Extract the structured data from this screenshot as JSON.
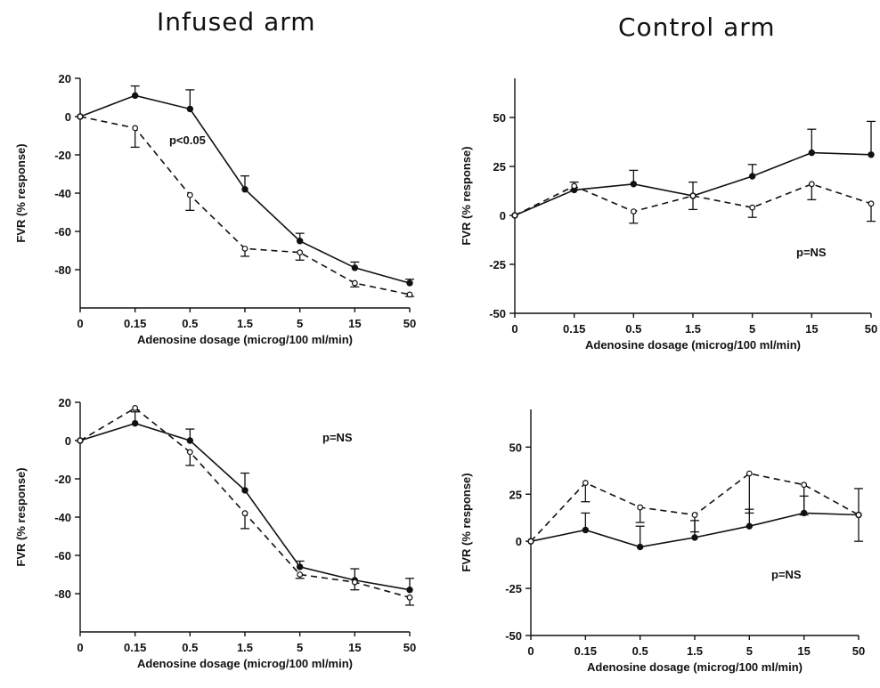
{
  "titles": {
    "left": "Infused arm",
    "right": "Control arm"
  },
  "chart_data": [
    {
      "type": "line",
      "panel": "top-left",
      "categories": [
        "0",
        "0.15",
        "0.5",
        "1.5",
        "5",
        "15",
        "50"
      ],
      "xlabel": "Adenosine dosage (microg/100 ml/min)",
      "ylabel": "FVR (% response)",
      "ylim": [
        -100,
        20
      ],
      "yticks": [
        20,
        0,
        -20,
        -40,
        -60,
        -80
      ],
      "annotation": "p<0.05",
      "series": [
        {
          "style": "solid",
          "marker": "filled",
          "values": [
            0,
            11,
            4,
            -38,
            -65,
            -79,
            -87
          ],
          "errors": [
            0,
            5,
            10,
            7,
            4,
            3,
            2
          ]
        },
        {
          "style": "dashed",
          "marker": "open",
          "values": [
            0,
            -6,
            -41,
            -69,
            -71,
            -87,
            -93
          ],
          "errors": [
            0,
            10,
            8,
            4,
            4,
            2,
            1
          ]
        }
      ]
    },
    {
      "type": "line",
      "panel": "top-right",
      "categories": [
        "0",
        "0.15",
        "0.5",
        "1.5",
        "5",
        "15",
        "50"
      ],
      "xlabel": "Adenosine dosage (microg/100 ml/min)",
      "ylabel": "FVR (% response)",
      "ylim": [
        -50,
        70
      ],
      "yticks": [
        50,
        25,
        0,
        -25,
        -50
      ],
      "annotation": "p=NS",
      "series": [
        {
          "style": "solid",
          "marker": "filled",
          "values": [
            0,
            13,
            16,
            10,
            20,
            32,
            31
          ],
          "errors": [
            0,
            4,
            7,
            7,
            6,
            12,
            17
          ]
        },
        {
          "style": "dashed",
          "marker": "open",
          "values": [
            0,
            15,
            2,
            10,
            4,
            16,
            6
          ],
          "errors": [
            0,
            2,
            6,
            7,
            5,
            8,
            9
          ]
        }
      ]
    },
    {
      "type": "line",
      "panel": "bottom-left",
      "categories": [
        "0",
        "0.15",
        "0.5",
        "1.5",
        "5",
        "15",
        "50"
      ],
      "xlabel": "Adenosine dosage (microg/100 ml/min)",
      "ylabel": "FVR (% response)",
      "ylim": [
        -100,
        20
      ],
      "yticks": [
        20,
        0,
        -20,
        -40,
        -60,
        -80
      ],
      "annotation": "p=NS",
      "series": [
        {
          "style": "solid",
          "marker": "filled",
          "values": [
            0,
            9,
            0,
            -26,
            -66,
            -73,
            -78
          ],
          "errors": [
            0,
            6,
            6,
            9,
            3,
            6,
            6
          ]
        },
        {
          "style": "dashed",
          "marker": "open",
          "values": [
            0,
            17,
            -6,
            -38,
            -70,
            -74,
            -82
          ],
          "errors": [
            0,
            1,
            7,
            8,
            2,
            4,
            4
          ]
        }
      ]
    },
    {
      "type": "line",
      "panel": "bottom-right",
      "categories": [
        "0",
        "0.15",
        "0.5",
        "1.5",
        "5",
        "15",
        "50"
      ],
      "xlabel": "Adenosine dosage (microg/100 ml/min)",
      "ylabel": "FVR (% response)",
      "ylim": [
        -50,
        70
      ],
      "yticks": [
        50,
        25,
        0,
        -25,
        -50
      ],
      "annotation": "p=NS",
      "series": [
        {
          "style": "solid",
          "marker": "filled",
          "values": [
            0,
            6,
            -3,
            2,
            8,
            15,
            14
          ],
          "errors": [
            0,
            9,
            11,
            9,
            9,
            9,
            14
          ]
        },
        {
          "style": "dashed",
          "marker": "open",
          "values": [
            0,
            31,
            18,
            14,
            36,
            30,
            14
          ],
          "errors": [
            0,
            10,
            8,
            9,
            21,
            16,
            14
          ]
        }
      ]
    }
  ]
}
